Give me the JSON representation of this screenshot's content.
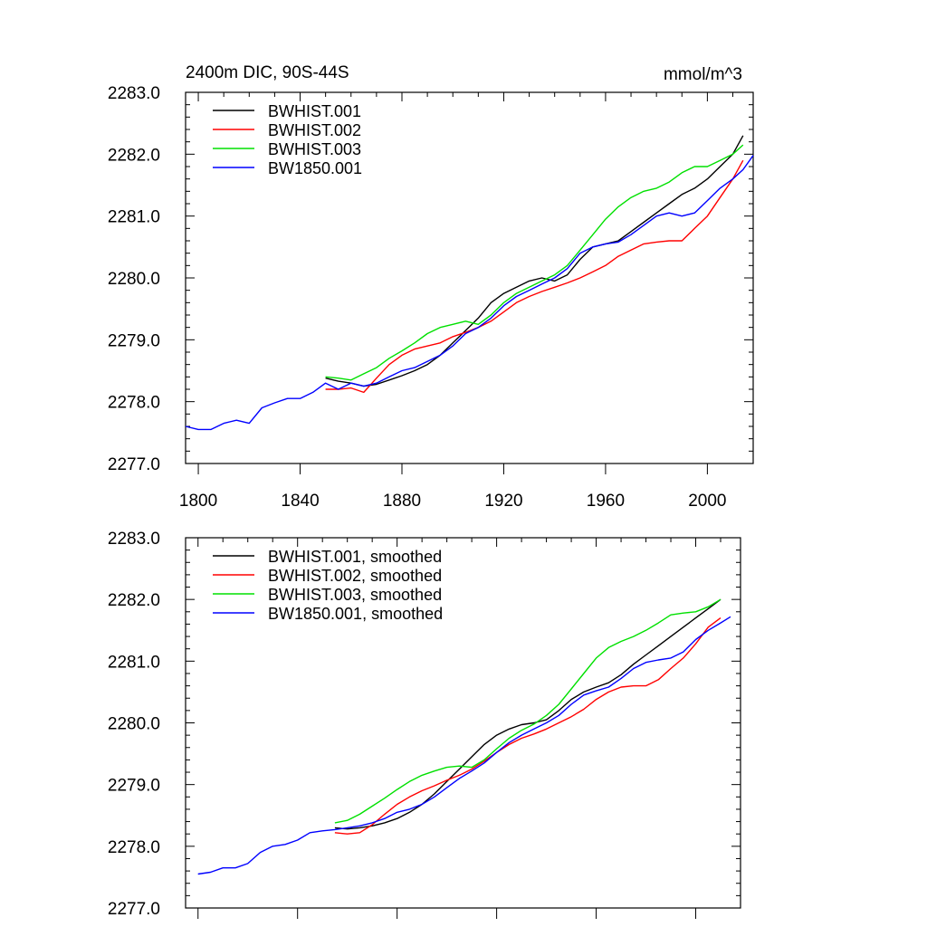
{
  "chart_data": [
    {
      "type": "line",
      "title": "2400m DIC, 90S-44S",
      "units": "mmol/m^3",
      "xlim": [
        1795,
        2018
      ],
      "ylim": [
        2277.0,
        2283.0
      ],
      "xticks": [
        "1800",
        "1840",
        "1880",
        "1920",
        "1960",
        "2000"
      ],
      "yticks": [
        "2277.0",
        "2278.0",
        "2279.0",
        "2280.0",
        "2281.0",
        "2282.0",
        "2283.0"
      ],
      "legend_position": "top-left",
      "series": [
        {
          "name": "BWHIST.001",
          "color": "#000000",
          "x": [
            1850,
            1855,
            1860,
            1865,
            1870,
            1875,
            1880,
            1885,
            1890,
            1895,
            1900,
            1905,
            1910,
            1915,
            1920,
            1925,
            1930,
            1935,
            1940,
            1945,
            1950,
            1955,
            1960,
            1965,
            1970,
            1975,
            1980,
            1985,
            1990,
            1995,
            2000,
            2005,
            2010,
            2014
          ],
          "y": [
            2278.38,
            2278.33,
            2278.3,
            2278.25,
            2278.28,
            2278.35,
            2278.42,
            2278.5,
            2278.6,
            2278.75,
            2278.95,
            2279.15,
            2279.35,
            2279.6,
            2279.75,
            2279.85,
            2279.95,
            2280.0,
            2279.95,
            2280.05,
            2280.3,
            2280.5,
            2280.55,
            2280.6,
            2280.75,
            2280.9,
            2281.05,
            2281.2,
            2281.35,
            2281.45,
            2281.6,
            2281.8,
            2282.0,
            2282.3
          ]
        },
        {
          "name": "BWHIST.002",
          "color": "#ff0000",
          "x": [
            1850,
            1855,
            1860,
            1865,
            1870,
            1875,
            1880,
            1885,
            1890,
            1895,
            1900,
            1905,
            1910,
            1915,
            1920,
            1925,
            1930,
            1935,
            1940,
            1945,
            1950,
            1955,
            1960,
            1965,
            1970,
            1975,
            1980,
            1985,
            1990,
            1995,
            2000,
            2005,
            2010,
            2014
          ],
          "y": [
            2278.2,
            2278.2,
            2278.22,
            2278.15,
            2278.38,
            2278.6,
            2278.75,
            2278.85,
            2278.9,
            2278.95,
            2279.05,
            2279.12,
            2279.2,
            2279.3,
            2279.45,
            2279.6,
            2279.7,
            2279.78,
            2279.85,
            2279.92,
            2280.0,
            2280.1,
            2280.2,
            2280.35,
            2280.45,
            2280.55,
            2280.58,
            2280.6,
            2280.6,
            2280.8,
            2281.0,
            2281.3,
            2281.6,
            2281.9
          ]
        },
        {
          "name": "BWHIST.003",
          "color": "#00e000",
          "x": [
            1850,
            1855,
            1860,
            1865,
            1870,
            1875,
            1880,
            1885,
            1890,
            1895,
            1900,
            1905,
            1910,
            1915,
            1920,
            1925,
            1930,
            1935,
            1940,
            1945,
            1950,
            1955,
            1960,
            1965,
            1970,
            1975,
            1980,
            1985,
            1990,
            1995,
            2000,
            2005,
            2010,
            2014
          ],
          "y": [
            2278.4,
            2278.38,
            2278.35,
            2278.45,
            2278.55,
            2278.7,
            2278.82,
            2278.95,
            2279.1,
            2279.2,
            2279.25,
            2279.3,
            2279.25,
            2279.4,
            2279.6,
            2279.75,
            2279.85,
            2279.95,
            2280.05,
            2280.2,
            2280.45,
            2280.7,
            2280.95,
            2281.15,
            2281.3,
            2281.4,
            2281.45,
            2281.55,
            2281.7,
            2281.8,
            2281.8,
            2281.9,
            2282.0,
            2282.15
          ]
        },
        {
          "name": "BW1850.001",
          "color": "#0000ff",
          "x": [
            1795,
            1800,
            1805,
            1810,
            1815,
            1820,
            1825,
            1830,
            1835,
            1840,
            1845,
            1850,
            1855,
            1860,
            1865,
            1870,
            1875,
            1880,
            1885,
            1890,
            1895,
            1900,
            1905,
            1910,
            1915,
            1920,
            1925,
            1930,
            1935,
            1940,
            1945,
            1950,
            1955,
            1960,
            1965,
            1970,
            1975,
            1980,
            1985,
            1990,
            1995,
            2000,
            2005,
            2010,
            2014,
            2018
          ],
          "y": [
            2277.6,
            2277.55,
            2277.55,
            2277.65,
            2277.7,
            2277.65,
            2277.9,
            2277.98,
            2278.05,
            2278.05,
            2278.15,
            2278.3,
            2278.2,
            2278.3,
            2278.25,
            2278.3,
            2278.4,
            2278.5,
            2278.55,
            2278.65,
            2278.75,
            2278.9,
            2279.1,
            2279.2,
            2279.35,
            2279.55,
            2279.7,
            2279.8,
            2279.9,
            2280.0,
            2280.15,
            2280.4,
            2280.5,
            2280.55,
            2280.58,
            2280.7,
            2280.85,
            2281.0,
            2281.05,
            2281.0,
            2281.05,
            2281.25,
            2281.45,
            2281.6,
            2281.75,
            2281.98
          ]
        }
      ]
    },
    {
      "type": "line",
      "title": "",
      "units": "",
      "xlim": [
        1795,
        2018
      ],
      "ylim": [
        2277.0,
        2283.0
      ],
      "xticks": [],
      "yticks": [
        "2277.0",
        "2278.0",
        "2279.0",
        "2280.0",
        "2281.0",
        "2282.0",
        "2283.0"
      ],
      "legend_position": "top-left",
      "series": [
        {
          "name": "BWHIST.001, smoothed",
          "color": "#000000",
          "x": [
            1855,
            1860,
            1865,
            1870,
            1875,
            1880,
            1885,
            1890,
            1895,
            1900,
            1905,
            1910,
            1915,
            1920,
            1925,
            1930,
            1935,
            1940,
            1945,
            1950,
            1955,
            1960,
            1965,
            1970,
            1975,
            1980,
            1985,
            1990,
            1995,
            2000,
            2005,
            2010
          ],
          "y": [
            2278.3,
            2278.28,
            2278.3,
            2278.33,
            2278.38,
            2278.45,
            2278.55,
            2278.68,
            2278.85,
            2279.05,
            2279.25,
            2279.45,
            2279.65,
            2279.8,
            2279.9,
            2279.97,
            2280.0,
            2280.05,
            2280.2,
            2280.38,
            2280.5,
            2280.58,
            2280.65,
            2280.78,
            2280.95,
            2281.1,
            2281.25,
            2281.4,
            2281.55,
            2281.7,
            2281.85,
            2282.0
          ]
        },
        {
          "name": "BWHIST.002, smoothed",
          "color": "#ff0000",
          "x": [
            1855,
            1860,
            1865,
            1870,
            1875,
            1880,
            1885,
            1890,
            1895,
            1900,
            1905,
            1910,
            1915,
            1920,
            1925,
            1930,
            1935,
            1940,
            1945,
            1950,
            1955,
            1960,
            1965,
            1970,
            1975,
            1980,
            1985,
            1990,
            1995,
            2000,
            2005,
            2010
          ],
          "y": [
            2278.22,
            2278.2,
            2278.22,
            2278.35,
            2278.52,
            2278.68,
            2278.8,
            2278.9,
            2278.98,
            2279.07,
            2279.15,
            2279.25,
            2279.38,
            2279.52,
            2279.65,
            2279.75,
            2279.82,
            2279.9,
            2280.0,
            2280.1,
            2280.22,
            2280.38,
            2280.5,
            2280.58,
            2280.6,
            2280.6,
            2280.7,
            2280.88,
            2281.05,
            2281.28,
            2281.55,
            2281.7
          ]
        },
        {
          "name": "BWHIST.003, smoothed",
          "color": "#00e000",
          "x": [
            1855,
            1860,
            1865,
            1870,
            1875,
            1880,
            1885,
            1890,
            1895,
            1900,
            1905,
            1910,
            1915,
            1920,
            1925,
            1930,
            1935,
            1940,
            1945,
            1950,
            1955,
            1960,
            1965,
            1970,
            1975,
            1980,
            1985,
            1990,
            1995,
            2000,
            2005,
            2010
          ],
          "y": [
            2278.38,
            2278.42,
            2278.52,
            2278.65,
            2278.78,
            2278.92,
            2279.05,
            2279.15,
            2279.22,
            2279.28,
            2279.3,
            2279.28,
            2279.4,
            2279.58,
            2279.75,
            2279.88,
            2279.98,
            2280.12,
            2280.3,
            2280.55,
            2280.8,
            2281.05,
            2281.22,
            2281.32,
            2281.4,
            2281.5,
            2281.62,
            2281.75,
            2281.78,
            2281.8,
            2281.88,
            2282.0
          ]
        },
        {
          "name": "BW1850.001, smoothed",
          "color": "#0000ff",
          "x": [
            1800,
            1805,
            1810,
            1815,
            1820,
            1825,
            1830,
            1835,
            1840,
            1845,
            1850,
            1855,
            1860,
            1865,
            1870,
            1875,
            1880,
            1885,
            1890,
            1895,
            1900,
            1905,
            1910,
            1915,
            1920,
            1925,
            1930,
            1935,
            1940,
            1945,
            1950,
            1955,
            1960,
            1965,
            1970,
            1975,
            1980,
            1985,
            1990,
            1995,
            2000,
            2005,
            2010,
            2014
          ],
          "y": [
            2277.55,
            2277.58,
            2277.65,
            2277.65,
            2277.72,
            2277.9,
            2278.0,
            2278.03,
            2278.1,
            2278.22,
            2278.25,
            2278.27,
            2278.3,
            2278.33,
            2278.38,
            2278.45,
            2278.55,
            2278.6,
            2278.68,
            2278.8,
            2278.95,
            2279.1,
            2279.22,
            2279.35,
            2279.52,
            2279.68,
            2279.8,
            2279.9,
            2280.0,
            2280.12,
            2280.3,
            2280.45,
            2280.52,
            2280.58,
            2280.72,
            2280.88,
            2280.98,
            2281.02,
            2281.05,
            2281.15,
            2281.35,
            2281.5,
            2281.62,
            2281.72
          ]
        }
      ]
    }
  ]
}
